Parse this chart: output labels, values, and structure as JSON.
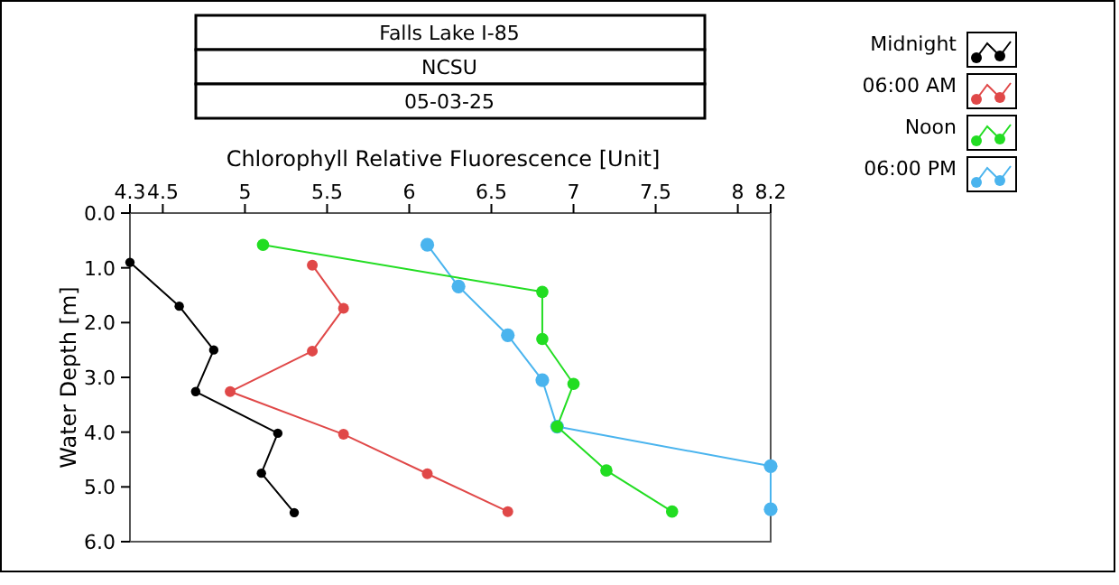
{
  "chart_data": {
    "type": "line",
    "title": "Falls Lake I-85",
    "subtitle": "NCSU",
    "annotations": [
      "05-03-25"
    ],
    "xlabel": "Chlorophyll Relative Fluorescence [Unit]",
    "ylabel": "Water Depth [m]",
    "xlim": [
      4.3,
      8.2
    ],
    "xticks": [
      4.3,
      4.5,
      5,
      5.5,
      6,
      6.5,
      7,
      7.5,
      8,
      8.2
    ],
    "ylim": [
      6,
      0
    ],
    "yticks": [
      {
        "value": 0,
        "label": "0.0"
      },
      {
        "value": 1,
        "label": "1.0"
      },
      {
        "value": 2,
        "label": "2.0"
      },
      {
        "value": 3,
        "label": "3.0"
      },
      {
        "value": 4,
        "label": "4.0"
      },
      {
        "value": 5,
        "label": "5.0"
      },
      {
        "value": 6,
        "label": "6.0"
      }
    ],
    "grid": false,
    "legend": "top right",
    "marker": "circle",
    "line_style": "solid",
    "series": [
      {
        "name": "Midnight",
        "color": "#000000",
        "x": [
          4.3,
          4.6,
          4.81,
          4.7,
          5.2,
          5.1,
          5.3
        ],
        "values": [
          0.9,
          1.7,
          2.5,
          3.26,
          4.02,
          4.75,
          5.47
        ]
      },
      {
        "name": "06:00 AM",
        "color": "#e04848",
        "x": [
          5.41,
          5.6,
          5.41,
          4.91,
          5.6,
          6.11,
          6.6
        ],
        "values": [
          0.95,
          1.74,
          2.52,
          3.26,
          4.04,
          4.76,
          5.45
        ]
      },
      {
        "name": "Noon",
        "color": "#22dd22",
        "x": [
          5.11,
          6.81,
          6.81,
          7.0,
          6.9,
          7.2,
          7.6
        ],
        "values": [
          0.58,
          1.44,
          2.3,
          3.12,
          3.9,
          4.7,
          5.45
        ]
      },
      {
        "name": "06:00 PM",
        "color": "#4ab4ee",
        "x": [
          6.11,
          6.3,
          6.6,
          6.81,
          6.9,
          8.2,
          8.2
        ],
        "values": [
          0.58,
          1.34,
          2.23,
          3.05,
          3.9,
          4.62,
          5.41
        ]
      }
    ]
  }
}
